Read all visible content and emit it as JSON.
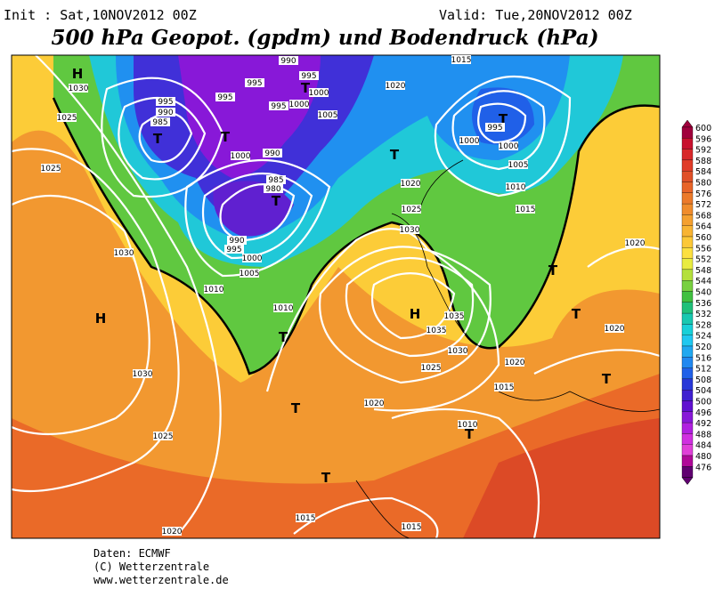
{
  "header": {
    "init": "Init : Sat,10NOV2012 00Z",
    "valid": "Valid: Tue,20NOV2012 00Z",
    "title": "500 hPa Geopot. (gpdm) und Bodendruck (hPa)"
  },
  "colorbar": {
    "ticks": [
      600,
      596,
      592,
      588,
      584,
      580,
      576,
      572,
      568,
      564,
      560,
      556,
      552,
      548,
      544,
      540,
      536,
      532,
      528,
      524,
      520,
      516,
      512,
      508,
      504,
      500,
      496,
      492,
      488,
      484,
      480,
      476
    ],
    "colors": [
      "#a0003c",
      "#c8102e",
      "#d8282a",
      "#e03c28",
      "#e05028",
      "#e86428",
      "#ec7a2a",
      "#f08c2c",
      "#f4a030",
      "#f8b434",
      "#fcc838",
      "#fce040",
      "#e8ec40",
      "#b4e03c",
      "#78d040",
      "#40c040",
      "#20c07a",
      "#18c8b0",
      "#18d0d8",
      "#20c8f0",
      "#20a8f0",
      "#2088f0",
      "#2060e8",
      "#2838d8",
      "#4020d0",
      "#6010d0",
      "#8818d8",
      "#b020e0",
      "#d030e0",
      "#e040d8",
      "#b00898",
      "#600070"
    ]
  },
  "map_labels": [
    "H",
    "H",
    "H",
    "T",
    "T",
    "T",
    "T",
    "T",
    "T",
    "T",
    "T",
    "T",
    "T",
    "T",
    "T",
    "T",
    "1030",
    "1025",
    "1025",
    "1030",
    "1030",
    "1025",
    "1020",
    "1015",
    "1015",
    "1020",
    "1025",
    "1030",
    "1035",
    "1035",
    "1010",
    "1005",
    "1010",
    "1000",
    "995",
    "990",
    "985",
    "980",
    "990",
    "1000",
    "995",
    "990",
    "985",
    "995",
    "995",
    "990",
    "995",
    "1000",
    "995",
    "1000",
    "1005",
    "1020",
    "1015",
    "1020",
    "1025",
    "1030",
    "995",
    "1000",
    "1000",
    "1005",
    "1010",
    "1015",
    "1020",
    "1015",
    "1010",
    "1020",
    "1020"
  ],
  "footer": {
    "source": "Daten: ECMWF",
    "copyright": "(C) Wetterzentrale",
    "url": "www.wetterzentrale.de"
  }
}
